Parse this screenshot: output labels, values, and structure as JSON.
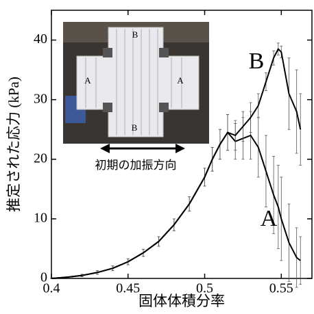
{
  "chart_data": {
    "type": "line",
    "xlabel": "固体体積分率",
    "ylabel": "推定された応力 (kPa)",
    "xlim": [
      0.4,
      0.57
    ],
    "ylim": [
      0,
      45
    ],
    "xticks": [
      0.4,
      0.45,
      0.5,
      0.55
    ],
    "yticks": [
      0,
      10,
      20,
      30,
      40
    ],
    "x": [
      0.4,
      0.41,
      0.42,
      0.43,
      0.44,
      0.45,
      0.46,
      0.47,
      0.48,
      0.49,
      0.5,
      0.505,
      0.51,
      0.515,
      0.52,
      0.525,
      0.53,
      0.535,
      0.54,
      0.545,
      0.548,
      0.55,
      0.555,
      0.56,
      0.5625
    ],
    "series": [
      {
        "name": "A",
        "color": "#000000",
        "values": [
          0,
          0.2,
          0.5,
          1,
          1.7,
          2.8,
          4.3,
          6.2,
          9,
          12.5,
          17,
          20,
          22.5,
          24.5,
          23,
          23.5,
          24,
          22,
          18,
          14,
          12,
          10,
          6,
          3.5,
          3
        ],
        "errors": [
          0,
          0.1,
          0.2,
          0.3,
          0.4,
          0.5,
          0.6,
          0.8,
          1,
          1.2,
          1.5,
          2,
          2.5,
          3,
          3,
          3.5,
          4,
          5,
          6,
          6.5,
          7,
          7,
          6.5,
          5,
          4
        ]
      },
      {
        "name": "B",
        "color": "#000000",
        "values": [
          0,
          0.2,
          0.5,
          1,
          1.7,
          2.8,
          4.3,
          6.2,
          9,
          12.5,
          17,
          20,
          22.5,
          24.5,
          24,
          25.5,
          27,
          29,
          33,
          37,
          38.5,
          38,
          31,
          28,
          25
        ],
        "errors": [
          0,
          0.1,
          0.2,
          0.3,
          0.4,
          0.5,
          0.6,
          0.8,
          1,
          1.2,
          1.5,
          2,
          2.5,
          3,
          2.5,
          2.5,
          2.5,
          2,
          1.5,
          1.2,
          1,
          1,
          6,
          7,
          6
        ]
      }
    ],
    "inset": {
      "labels": [
        "B",
        "A",
        "A",
        "B"
      ],
      "caption": "初期の加振方向"
    }
  }
}
